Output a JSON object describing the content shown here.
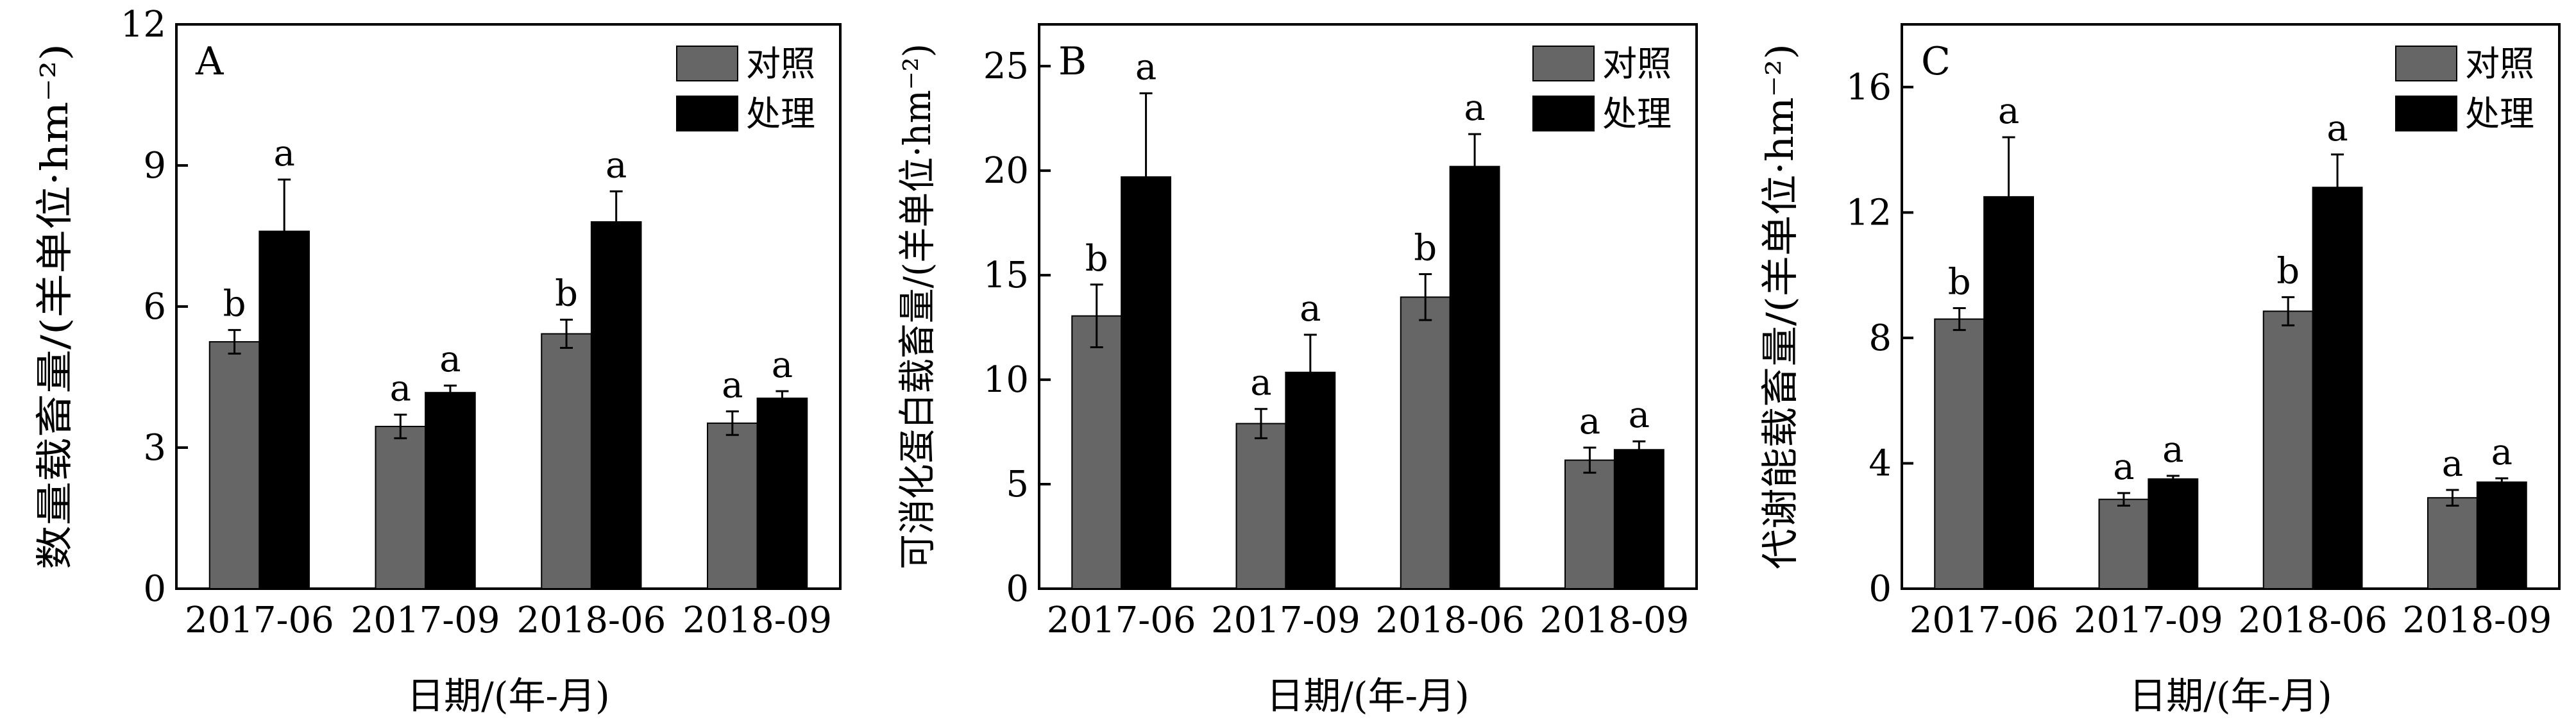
{
  "colors": {
    "control": "#666666",
    "treatment": "#000000"
  },
  "chart_data": [
    {
      "type": "bar",
      "panel": "A",
      "categories": [
        "2017-06",
        "2017-09",
        "2018-06",
        "2018-09"
      ],
      "series": [
        {
          "name": "对照",
          "values": [
            5.25,
            3.45,
            5.42,
            3.52
          ],
          "errors": [
            0.25,
            0.25,
            0.3,
            0.25
          ],
          "labels": [
            "b",
            "a",
            "b",
            "a"
          ]
        },
        {
          "name": "处理",
          "values": [
            7.6,
            4.17,
            7.8,
            4.05
          ],
          "errors": [
            1.1,
            0.15,
            0.65,
            0.15
          ],
          "labels": [
            "a",
            "a",
            "a",
            "a"
          ]
        }
      ],
      "xlabel": "日期/(年-月)",
      "ylabel": "数量载畜量/(羊单位·hm⁻²)",
      "ylim": [
        0,
        12
      ],
      "yticks": [
        "0",
        "3",
        "6",
        "9",
        "12"
      ],
      "legend_position": "top-right",
      "grid": false
    },
    {
      "type": "bar",
      "panel": "B",
      "categories": [
        "2017-06",
        "2017-09",
        "2018-06",
        "2018-09"
      ],
      "series": [
        {
          "name": "对照",
          "values": [
            13.05,
            7.9,
            13.95,
            6.15
          ],
          "errors": [
            1.5,
            0.7,
            1.1,
            0.6
          ],
          "labels": [
            "b",
            "a",
            "b",
            "a"
          ]
        },
        {
          "name": "处理",
          "values": [
            19.7,
            10.35,
            20.2,
            6.65
          ],
          "errors": [
            4.0,
            1.8,
            1.55,
            0.4
          ],
          "labels": [
            "a",
            "a",
            "a",
            "a"
          ]
        }
      ],
      "xlabel": "日期/(年-月)",
      "ylabel": "可消化蛋白载畜量/(羊单位·hm⁻²)",
      "ylim": [
        0,
        27
      ],
      "yticks": [
        "0",
        "5",
        "10",
        "15",
        "20",
        "25"
      ],
      "legend_position": "top-right",
      "grid": false
    },
    {
      "type": "bar",
      "panel": "C",
      "categories": [
        "2017-06",
        "2017-09",
        "2018-06",
        "2018-09"
      ],
      "series": [
        {
          "name": "对照",
          "values": [
            8.6,
            2.85,
            8.85,
            2.9
          ],
          "errors": [
            0.35,
            0.2,
            0.45,
            0.25
          ],
          "labels": [
            "b",
            "a",
            "b",
            "a"
          ]
        },
        {
          "name": "处理",
          "values": [
            12.5,
            3.5,
            12.8,
            3.4
          ],
          "errors": [
            1.9,
            0.1,
            1.05,
            0.12
          ],
          "labels": [
            "a",
            "a",
            "a",
            "a"
          ]
        }
      ],
      "xlabel": "日期/(年-月)",
      "ylabel": "代谢能载畜量/(羊单位·hm⁻²)",
      "ylim": [
        0,
        18
      ],
      "yticks": [
        "0",
        "4",
        "8",
        "12",
        "16"
      ],
      "legend_position": "top-right",
      "grid": false
    }
  ]
}
